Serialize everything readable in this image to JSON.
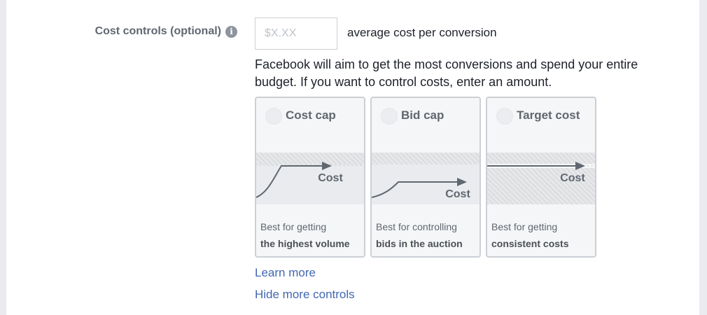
{
  "cost_controls": {
    "label": "Cost controls (optional)",
    "info_icon": "info-icon",
    "input_placeholder": "$X.XX",
    "input_value": "",
    "suffix": "average cost per conversion",
    "description": "Facebook will aim to get the most conversions and spend your entire budget. If you want to control costs, enter an amount.",
    "options": [
      {
        "title": "Cost cap",
        "chart_label": "Cost",
        "line1": "Best for getting",
        "line2": "the highest volume",
        "selected": false
      },
      {
        "title": "Bid cap",
        "chart_label": "Cost",
        "line1": "Best for controlling",
        "line2": "bids in the auction",
        "selected": false
      },
      {
        "title": "Target cost",
        "chart_label": "Cost",
        "line1": "Best for getting",
        "line2": "consistent costs",
        "selected": false
      }
    ],
    "learn_more": "Learn more",
    "hide_controls": "Hide more controls"
  }
}
